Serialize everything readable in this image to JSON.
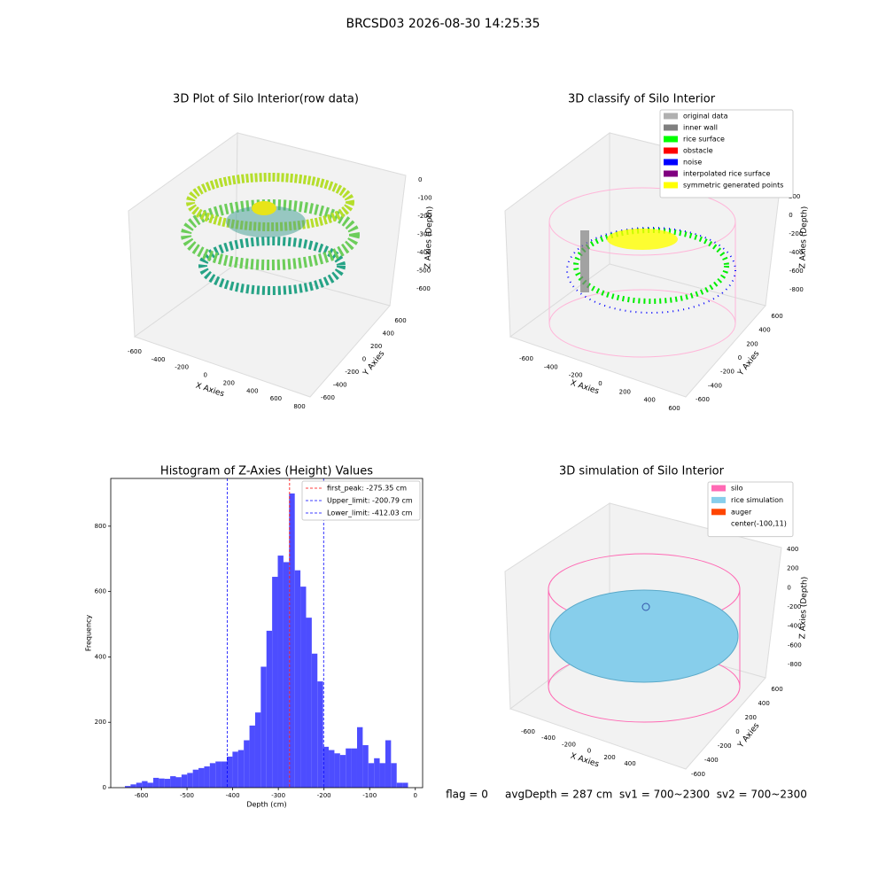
{
  "title": "BRCSD03 2026-08-30 14:25:35",
  "footer": "flag = 0     avgDepth = 287 cm  sv1 = 700~2300  sv2 = 700~2300",
  "chart_data": [
    {
      "type": "scatter3d",
      "title": "3D Plot of Silo Interior(row data)",
      "xlabel": "X Axies",
      "ylabel": "Y Axies",
      "zlabel": "Z Axies (Depth)",
      "xticks": [
        -600,
        -400,
        -200,
        0,
        200,
        400,
        600,
        800
      ],
      "yticks": [
        -600,
        -400,
        -200,
        0,
        200,
        400,
        600
      ],
      "zticks": [
        -600,
        -500,
        -400,
        -300,
        -200,
        -100,
        0
      ]
    },
    {
      "type": "scatter3d",
      "title": "3D classify of Silo Interior",
      "xlabel": "X Axies",
      "ylabel": "Y Axies",
      "zlabel": "Z Axies (Depth)",
      "xticks": [
        -600,
        -400,
        -200,
        0,
        200,
        400,
        600
      ],
      "yticks": [
        -600,
        -400,
        -200,
        0,
        200,
        400,
        600
      ],
      "zticks": [
        -800,
        -600,
        -400,
        -200,
        0,
        200
      ],
      "series": [
        {
          "name": "original data",
          "color": "#b0b0b0"
        },
        {
          "name": "inner wall",
          "color": "#808080"
        },
        {
          "name": "rice surface",
          "color": "#00ff00"
        },
        {
          "name": "obstacle",
          "color": "#ff0000"
        },
        {
          "name": "noise",
          "color": "#0000ff"
        },
        {
          "name": "interpolated rice surface",
          "color": "#800080"
        },
        {
          "name": "symmetric generated points",
          "color": "#ffff00"
        }
      ]
    },
    {
      "type": "histogram",
      "title": "Histogram of Z-Axies (Height) Values",
      "xlabel": "Depth (cm)",
      "ylabel": "Frequency",
      "color": "#4d4dff",
      "bins": [
        -636,
        -623.6,
        -611.2,
        -598.8,
        -586.4,
        -574,
        -561.6,
        -549.2,
        -536.8,
        -524.4,
        -512,
        -499.6,
        -487.2,
        -474.8,
        -462.4,
        -450,
        -437.6,
        -425.2,
        -412.8,
        -400.4,
        -388,
        -375.6,
        -363.2,
        -350.8,
        -338.4,
        -326,
        -313.6,
        -301.2,
        -288.8,
        -276.4,
        -264,
        -251.6,
        -239.2,
        -226.8,
        -214.4,
        -202,
        -189.6,
        -177.2,
        -164.8,
        -152.4,
        -140,
        -127.6,
        -115.2,
        -102.8,
        -90.4,
        -78,
        -65.6,
        -53.2,
        -40.8,
        -28.4,
        -16
      ],
      "values": [
        5,
        10,
        15,
        20,
        15,
        30,
        28,
        27,
        35,
        32,
        40,
        45,
        55,
        60,
        65,
        75,
        80,
        80,
        95,
        110,
        115,
        145,
        190,
        230,
        370,
        480,
        645,
        710,
        690,
        900,
        665,
        615,
        520,
        410,
        325,
        125,
        115,
        105,
        100,
        120,
        120,
        185,
        130,
        75,
        90,
        75,
        145,
        75,
        15,
        15
      ],
      "xlim": [
        -667,
        16
      ],
      "ylim": [
        0,
        946
      ],
      "xticks": [
        -600,
        -500,
        -400,
        -300,
        -200,
        -100,
        0
      ],
      "yticks": [
        0,
        200,
        400,
        600,
        800
      ],
      "lines": [
        {
          "name": "first_peak: -275.35 cm",
          "value": -275.35,
          "color": "#ff0000"
        },
        {
          "name": "Upper_limit: -200.79 cm",
          "value": -200.79,
          "color": "#0000ff"
        },
        {
          "name": "Lower_limit: -412.03 cm",
          "value": -412.03,
          "color": "#0000ff"
        }
      ]
    },
    {
      "type": "surface3d",
      "title": "3D simulation of Silo Interior",
      "xlabel": "X Axies",
      "ylabel": "Y Axies",
      "zlabel": "Z Axies (Depth)",
      "xticks": [
        -600,
        -400,
        -200,
        0,
        200,
        400
      ],
      "yticks": [
        -600,
        -400,
        -200,
        0,
        200,
        400,
        600
      ],
      "zticks": [
        -800,
        -600,
        -400,
        -200,
        0,
        200,
        400
      ],
      "series": [
        {
          "name": "silo",
          "color": "#ff69b4"
        },
        {
          "name": "rice simulation",
          "color": "#87ceeb"
        },
        {
          "name": "auger",
          "color": "#ff4500"
        },
        {
          "name": "center(-100,11)",
          "color": "#ffffff"
        }
      ]
    }
  ]
}
